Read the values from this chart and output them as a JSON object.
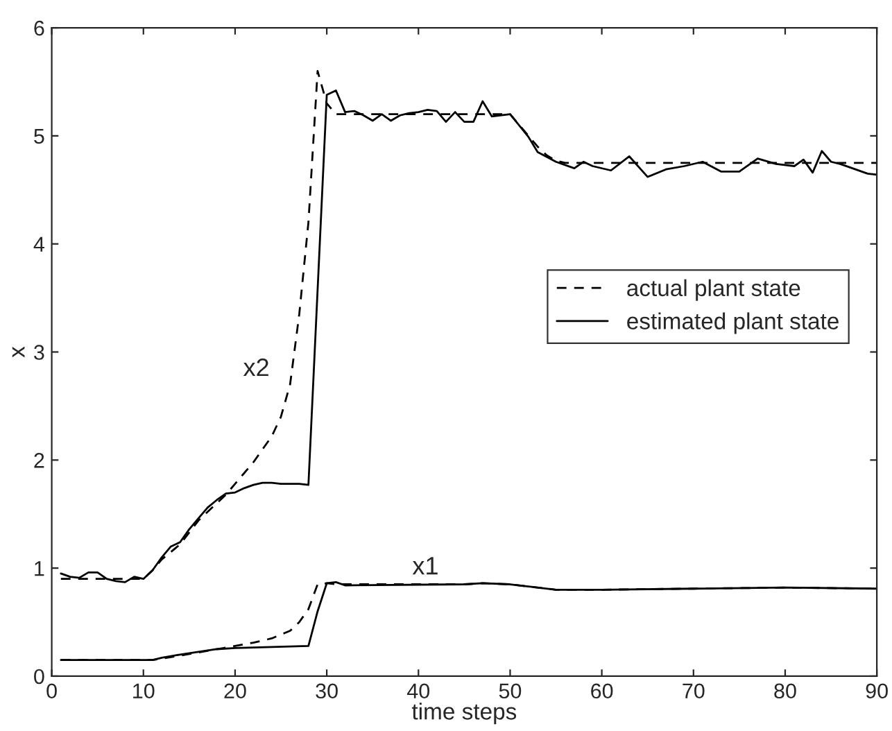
{
  "chart_data": {
    "type": "line",
    "xlabel": "time steps",
    "ylabel": "x",
    "xlim": [
      0,
      90
    ],
    "ylim": [
      0,
      6
    ],
    "xticks": [
      0,
      10,
      20,
      30,
      40,
      50,
      60,
      70,
      80,
      90
    ],
    "yticks": [
      0,
      1,
      2,
      3,
      4,
      5,
      6
    ],
    "grid": false,
    "legend": "right",
    "marker": "none",
    "series": [
      {
        "name": "actual plant state",
        "color": "#000000",
        "line_style": "dashed",
        "x": [
          1,
          5,
          10,
          11,
          12,
          14,
          16,
          18,
          19,
          20,
          21,
          22,
          23,
          24,
          25,
          26,
          27,
          28,
          29,
          30,
          31,
          40,
          50,
          51,
          52,
          53,
          54,
          55,
          56,
          90
        ],
        "values": [
          0.9,
          0.9,
          0.9,
          0.98,
          1.08,
          1.22,
          1.44,
          1.6,
          1.68,
          1.78,
          1.88,
          1.98,
          2.1,
          2.22,
          2.4,
          2.7,
          3.35,
          4.2,
          5.6,
          5.3,
          5.2,
          5.2,
          5.2,
          5.1,
          5.0,
          4.9,
          4.82,
          4.77,
          4.75,
          4.75
        ]
      },
      {
        "name": "estimated plant state",
        "color": "#000000",
        "line_style": "solid",
        "x": [
          1,
          2,
          3,
          4,
          5,
          6,
          7,
          8,
          9,
          10,
          11,
          12,
          13,
          14,
          15,
          16,
          17,
          18,
          19,
          20,
          21,
          22,
          23,
          24,
          25,
          26,
          27,
          28,
          30,
          31,
          32,
          33,
          34,
          35,
          36,
          37,
          38,
          39,
          40,
          41,
          42,
          43,
          44,
          45,
          46,
          47,
          48,
          50,
          52,
          53,
          55,
          57,
          58,
          59,
          61,
          63,
          65,
          67,
          69,
          71,
          73,
          75,
          77,
          79,
          81,
          82,
          83,
          84,
          85,
          86,
          89,
          90
        ],
        "values": [
          0.95,
          0.92,
          0.91,
          0.96,
          0.96,
          0.9,
          0.88,
          0.87,
          0.92,
          0.9,
          0.98,
          1.1,
          1.2,
          1.24,
          1.36,
          1.46,
          1.56,
          1.63,
          1.69,
          1.7,
          1.74,
          1.77,
          1.79,
          1.79,
          1.78,
          1.78,
          1.78,
          1.77,
          5.38,
          5.42,
          5.22,
          5.23,
          5.19,
          5.14,
          5.2,
          5.14,
          5.19,
          5.21,
          5.22,
          5.24,
          5.23,
          5.13,
          5.22,
          5.13,
          5.13,
          5.32,
          5.18,
          5.2,
          4.99,
          4.85,
          4.76,
          4.7,
          4.76,
          4.72,
          4.68,
          4.81,
          4.62,
          4.69,
          4.72,
          4.76,
          4.67,
          4.67,
          4.79,
          4.74,
          4.72,
          4.78,
          4.66,
          4.86,
          4.76,
          4.74,
          4.65,
          4.64
        ]
      },
      {
        "color": "#000000",
        "line_style": "dashed",
        "x": [
          1,
          11,
          14,
          18,
          20,
          22,
          24,
          26,
          27,
          28,
          29,
          30,
          31,
          45,
          47,
          50,
          55,
          60,
          70,
          80,
          90
        ],
        "values": [
          0.15,
          0.15,
          0.19,
          0.25,
          0.28,
          0.31,
          0.35,
          0.42,
          0.5,
          0.62,
          0.85,
          0.86,
          0.85,
          0.85,
          0.86,
          0.85,
          0.8,
          0.8,
          0.81,
          0.82,
          0.81
        ]
      },
      {
        "color": "#000000",
        "line_style": "solid",
        "x": [
          1,
          11,
          12,
          14,
          18,
          20,
          28,
          29,
          30,
          31,
          32,
          45,
          47,
          50,
          55,
          60,
          70,
          80,
          90
        ],
        "values": [
          0.15,
          0.15,
          0.17,
          0.2,
          0.25,
          0.26,
          0.28,
          0.6,
          0.86,
          0.87,
          0.84,
          0.85,
          0.86,
          0.85,
          0.8,
          0.8,
          0.81,
          0.82,
          0.81
        ]
      }
    ],
    "annotations": [
      "x2",
      "x1"
    ]
  }
}
